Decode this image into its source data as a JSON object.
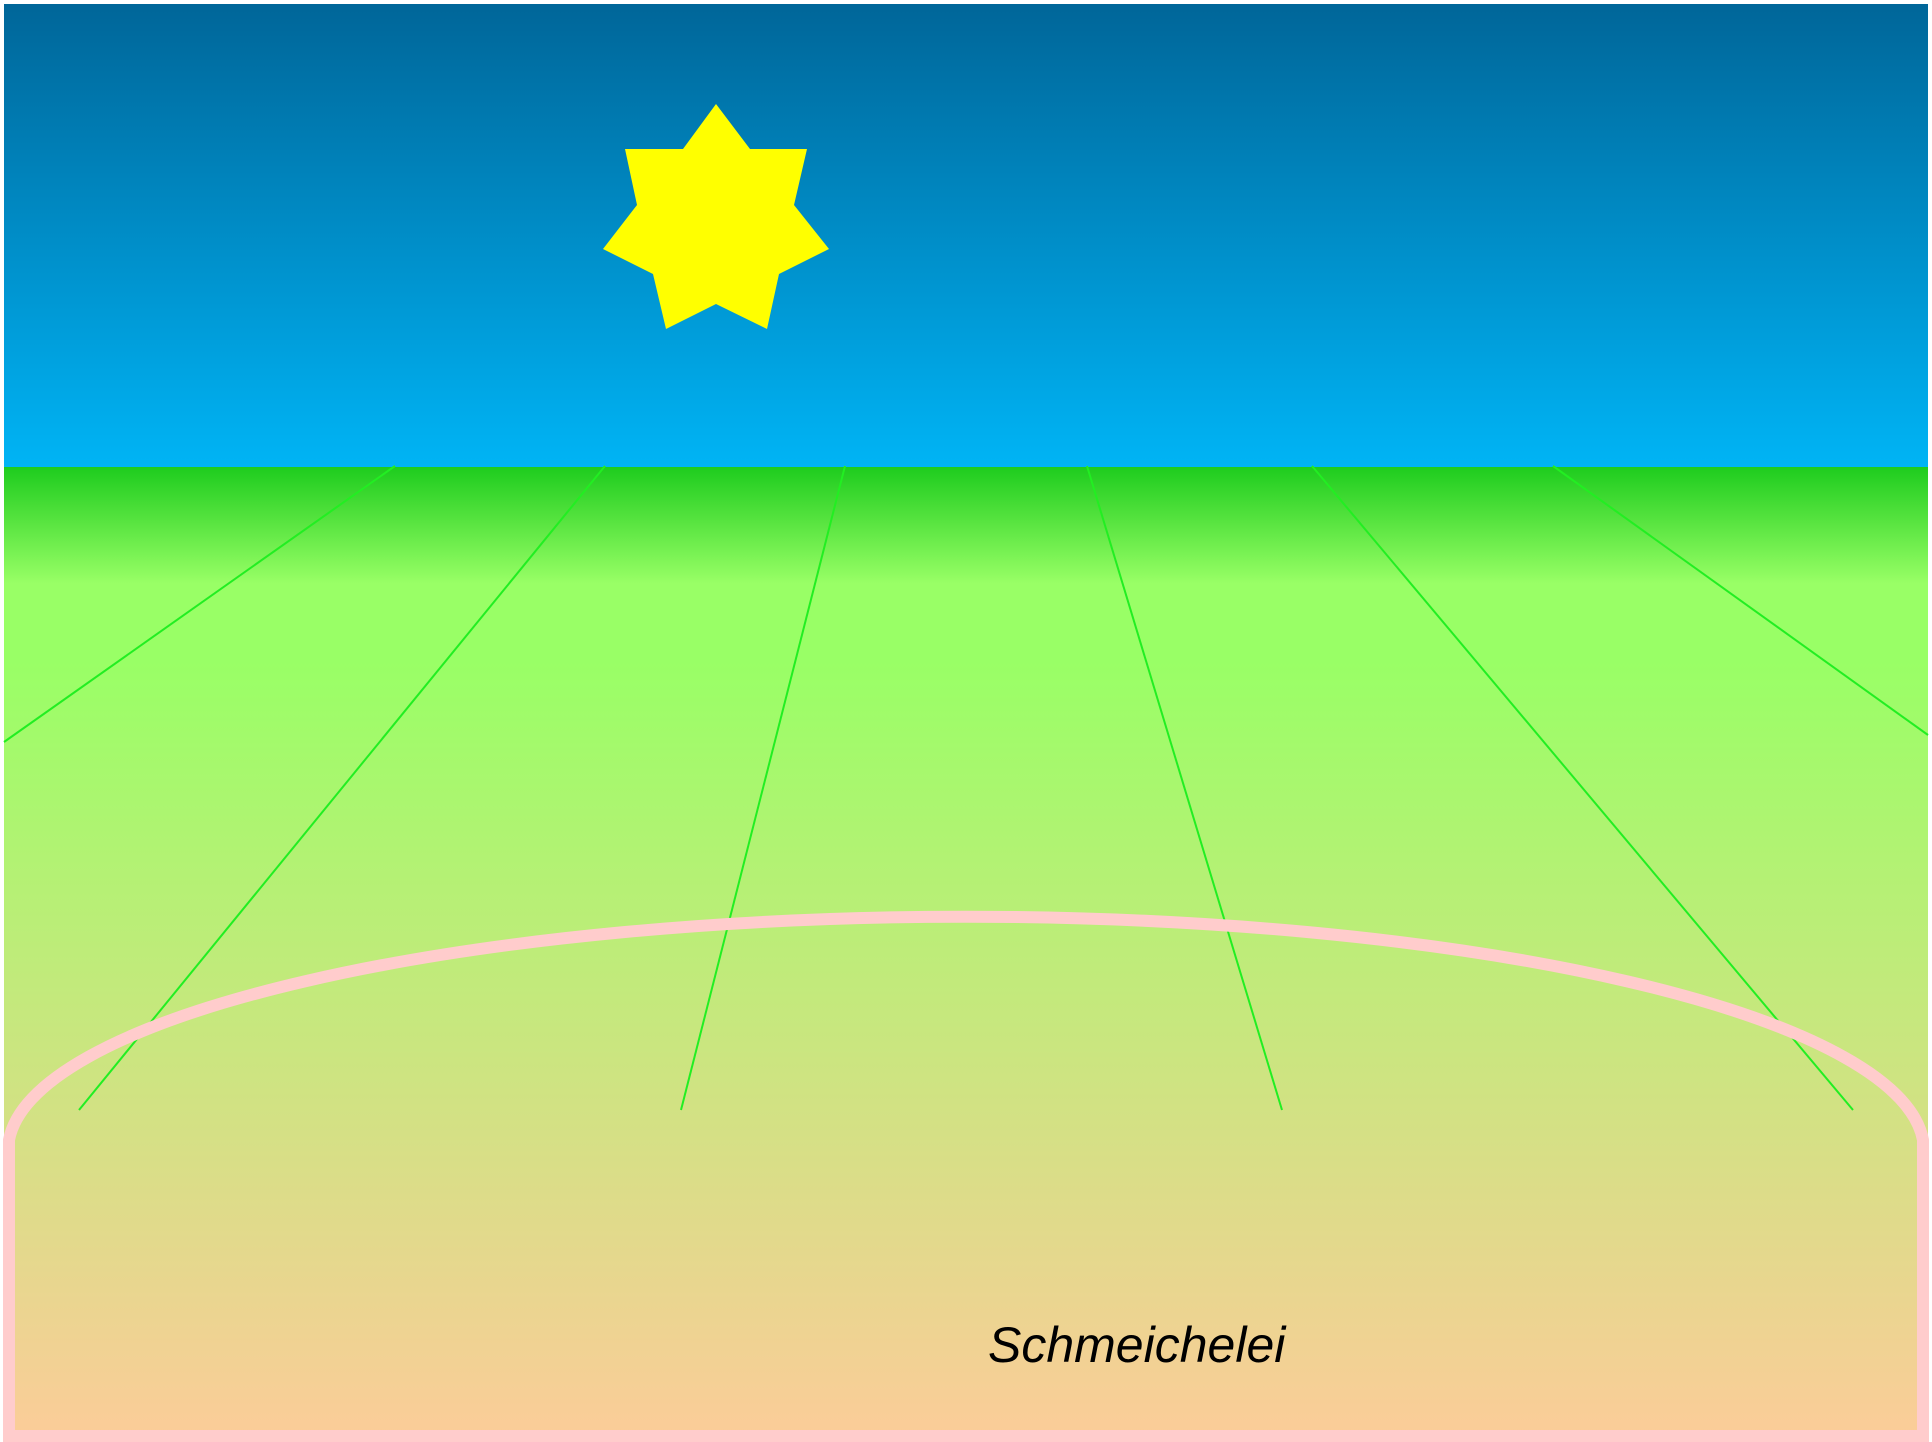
{
  "scene": {
    "caption": "Schmeichelei"
  }
}
